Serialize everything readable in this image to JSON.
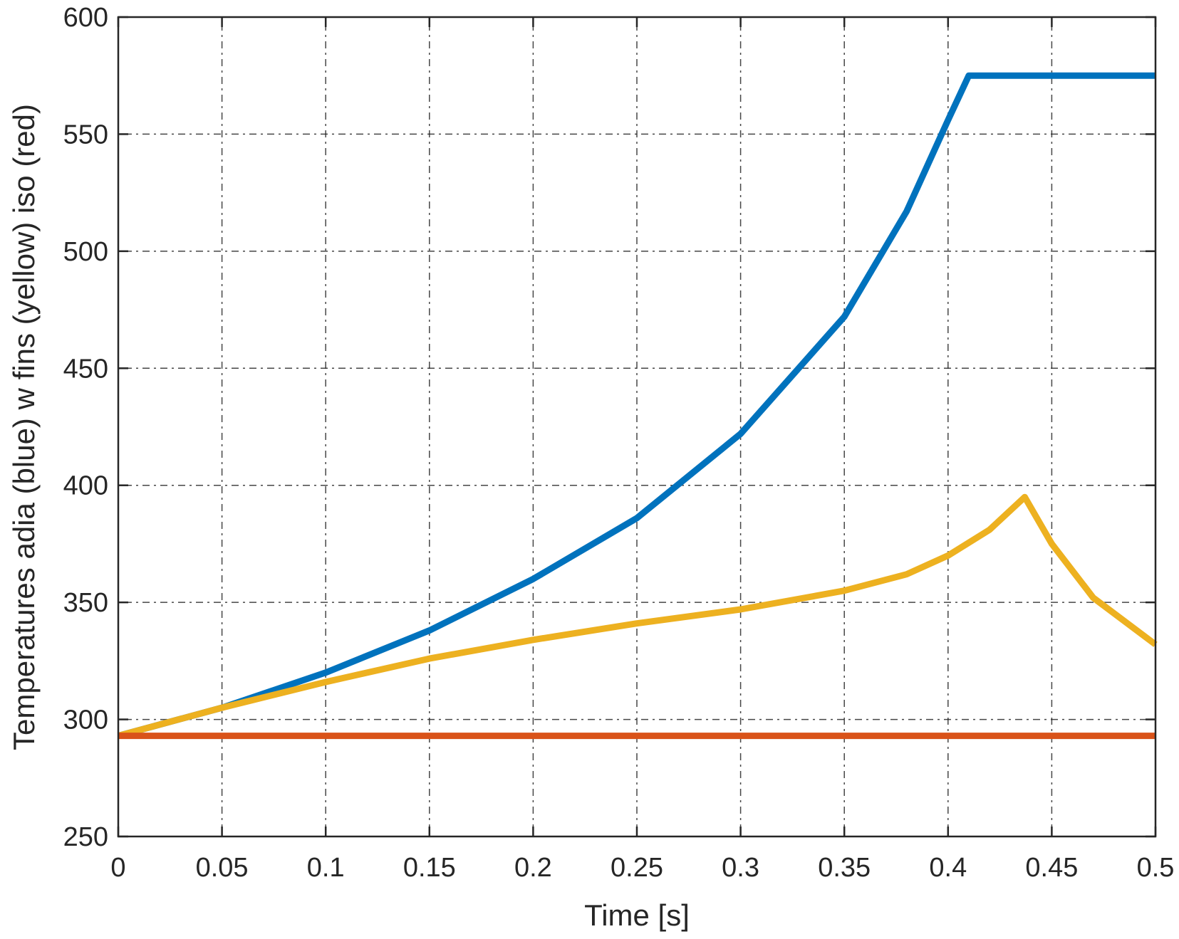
{
  "chart_data": {
    "type": "line",
    "title": "",
    "xlabel": "Time [s]",
    "ylabel": "Temperatures adia (blue) w fins (yellow) iso (red)",
    "xlim": [
      0,
      0.5
    ],
    "ylim": [
      250,
      600
    ],
    "xticks": [
      "0",
      "0.05",
      "0.1",
      "0.15",
      "0.2",
      "0.25",
      "0.3",
      "0.35",
      "0.4",
      "0.45",
      "0.5"
    ],
    "yticks": [
      "250",
      "300",
      "350",
      "400",
      "450",
      "500",
      "550",
      "600"
    ],
    "grid": true,
    "legend": "none",
    "series": [
      {
        "color": "#0072BD",
        "x": [
          0,
          0.05,
          0.1,
          0.15,
          0.2,
          0.25,
          0.3,
          0.35,
          0.38,
          0.4,
          0.41,
          0.5
        ],
        "y": [
          293,
          305,
          320,
          338,
          360,
          386,
          422,
          472,
          517,
          556,
          575,
          575
        ]
      },
      {
        "color": "#EDB120",
        "x": [
          0,
          0.05,
          0.1,
          0.15,
          0.2,
          0.25,
          0.3,
          0.35,
          0.38,
          0.4,
          0.42,
          0.437,
          0.45,
          0.47,
          0.5
        ],
        "y": [
          293,
          305,
          316,
          326,
          334,
          341,
          347,
          355,
          362,
          370,
          381,
          395,
          375,
          352,
          332
        ]
      },
      {
        "color": "#D95319",
        "x": [
          0,
          0.5
        ],
        "y": [
          293,
          293
        ]
      }
    ]
  }
}
